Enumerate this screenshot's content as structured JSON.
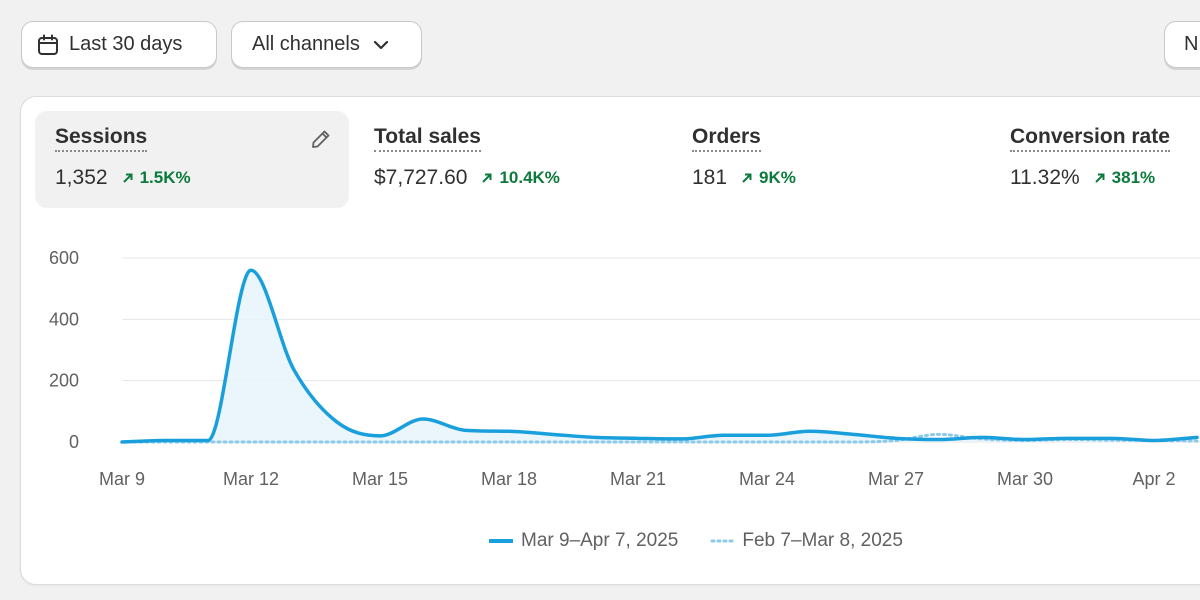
{
  "filters": {
    "date_range": "Last 30 days",
    "channel": "All channels",
    "extra": "N"
  },
  "metrics": [
    {
      "title": "Sessions",
      "value": "1,352",
      "change": "1.5K%",
      "active": true
    },
    {
      "title": "Total sales",
      "value": "$7,727.60",
      "change": "10.4K%",
      "active": false
    },
    {
      "title": "Orders",
      "value": "181",
      "change": "9K%",
      "active": false
    },
    {
      "title": "Conversion rate",
      "value": "11.32%",
      "change": "381%",
      "active": false
    }
  ],
  "colors": {
    "accent": "#1a9fdd",
    "positive": "#0c7a3b",
    "gridline": "#e6e6e6"
  },
  "legend": {
    "current": "Mar 9–Apr 7, 2025",
    "previous": "Feb 7–Mar 8, 2025"
  },
  "chart_data": {
    "type": "line",
    "yticks": [
      0,
      200,
      400,
      600
    ],
    "ylim": [
      0,
      600
    ],
    "xtick_labels": [
      "Mar 9",
      "Mar 12",
      "Mar 15",
      "Mar 18",
      "Mar 21",
      "Mar 24",
      "Mar 27",
      "Mar 30",
      "Apr 2"
    ],
    "x": [
      "Mar 9",
      "Mar 10",
      "Mar 11",
      "Mar 12",
      "Mar 13",
      "Mar 14",
      "Mar 15",
      "Mar 16",
      "Mar 17",
      "Mar 18",
      "Mar 19",
      "Mar 20",
      "Mar 21",
      "Mar 22",
      "Mar 23",
      "Mar 24",
      "Mar 25",
      "Mar 26",
      "Mar 27",
      "Mar 28",
      "Mar 29",
      "Mar 30",
      "Mar 31",
      "Apr 1",
      "Apr 2",
      "Apr 3"
    ],
    "grid": true,
    "series": [
      {
        "name": "Mar 9–Apr 7, 2025",
        "style": "solid",
        "values": [
          0,
          5,
          5,
          560,
          235,
          65,
          20,
          75,
          38,
          35,
          25,
          15,
          12,
          10,
          22,
          22,
          35,
          25,
          12,
          8,
          15,
          8,
          12,
          12,
          5,
          15
        ]
      },
      {
        "name": "Feb 7–Mar 8, 2025",
        "style": "dotted",
        "values": [
          0,
          0,
          0,
          0,
          0,
          0,
          0,
          0,
          0,
          0,
          0,
          0,
          0,
          0,
          0,
          0,
          0,
          0,
          5,
          25,
          10,
          5,
          8,
          6,
          5,
          3
        ]
      }
    ]
  }
}
